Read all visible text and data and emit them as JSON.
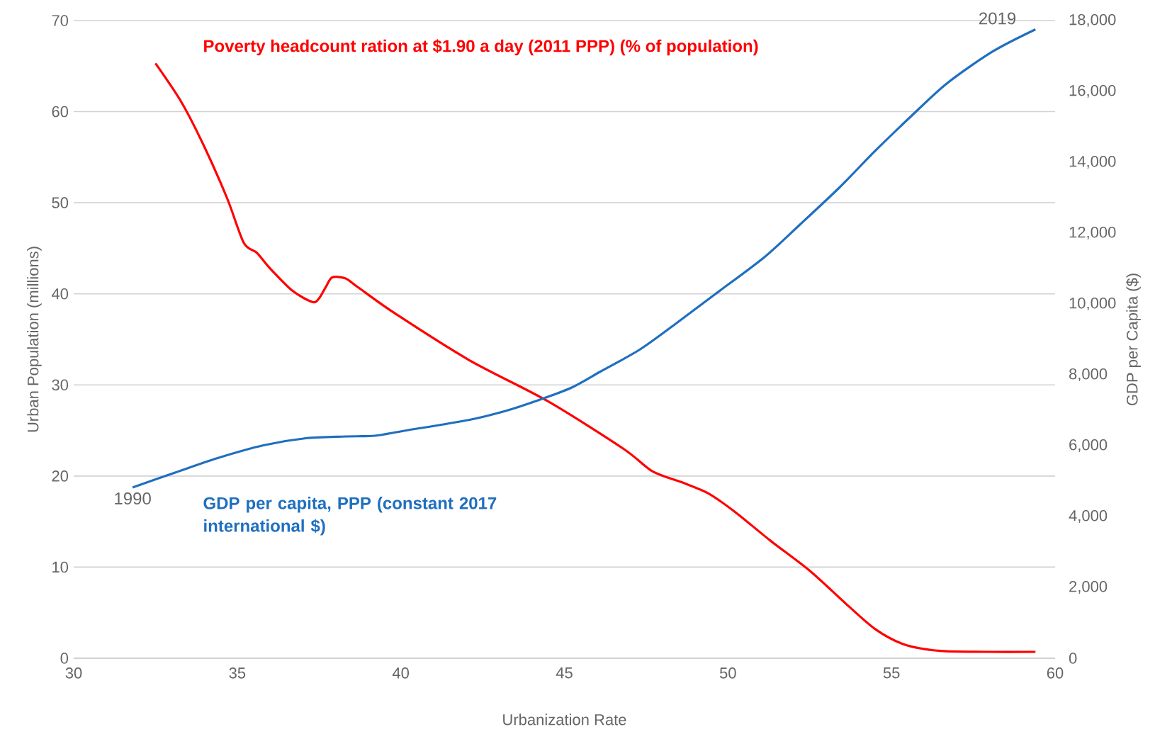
{
  "chart_data": {
    "type": "line",
    "xlabel": "Urbanization Rate",
    "ylabel": "Urban Population (millions)",
    "y2label": "GDP per Capita ($)",
    "xlim": [
      30,
      60
    ],
    "xticks": [
      30,
      35,
      40,
      45,
      50,
      55,
      60
    ],
    "ylim": [
      0,
      70
    ],
    "yticks": [
      0,
      10,
      20,
      30,
      40,
      50,
      60,
      70
    ],
    "y2lim": [
      0,
      18000
    ],
    "y2ticks": [
      {
        "value": 0,
        "label": "0"
      },
      {
        "value": 2000,
        "label": "2,000"
      },
      {
        "value": 4000,
        "label": "4,000"
      },
      {
        "value": 6000,
        "label": "6,000"
      },
      {
        "value": 8000,
        "label": "8,000"
      },
      {
        "value": 10000,
        "label": "10,000"
      },
      {
        "value": 12000,
        "label": "12,000"
      },
      {
        "value": 14000,
        "label": "14,000"
      },
      {
        "value": 16000,
        "label": "16,000"
      },
      {
        "value": 18000,
        "label": "18,000"
      }
    ],
    "grid": "y",
    "legend": false,
    "marker": "none",
    "line_style": "solid",
    "series": [
      {
        "name": "Poverty headcount ration at $1.90 a day (2011 PPP) (% of population)",
        "color": "#ff0000",
        "axis": "y",
        "x": [
          32.5,
          33.3,
          34.0,
          34.7,
          35.2,
          35.6,
          36.0,
          36.7,
          37.3,
          37.5,
          37.7,
          37.9,
          38.3,
          38.7,
          39.8,
          42.1,
          44.5,
          46.8,
          47.7,
          48.6,
          49.4,
          50.2,
          51.3,
          52.5,
          53.6,
          54.5,
          55.4,
          56.5,
          57.9,
          59.4
        ],
        "values": [
          65.3,
          61,
          56.1,
          50.4,
          45.6,
          44.5,
          42.8,
          40.3,
          39.1,
          39.5,
          40.7,
          41.8,
          41.7,
          40.7,
          37.9,
          32.7,
          28.2,
          23.0,
          20.5,
          19.3,
          18.1,
          16.1,
          12.9,
          9.6,
          6.0,
          3.2,
          1.5,
          0.8,
          0.7,
          0.7
        ]
      },
      {
        "name": "GDP per capita, PPP (constant 2017 international $)",
        "color": "#1f6fbf",
        "axis": "y2",
        "x": [
          31.8,
          33.1,
          34.4,
          35.8,
          37.1,
          38.3,
          39.2,
          40.1,
          42.1,
          43.2,
          44.1,
          45.2,
          46.1,
          47.3,
          48.4,
          49.6,
          51.1,
          52.2,
          53.4,
          54.5,
          55.6,
          56.7,
          58.1,
          59.4
        ],
        "values": [
          4820,
          5240,
          5650,
          6010,
          6210,
          6260,
          6280,
          6420,
          6730,
          6980,
          7250,
          7630,
          8090,
          8710,
          9440,
          10270,
          11310,
          12240,
          13280,
          14320,
          15300,
          16230,
          17130,
          17750
        ]
      }
    ],
    "annotations": [
      "1990",
      "2019"
    ]
  }
}
